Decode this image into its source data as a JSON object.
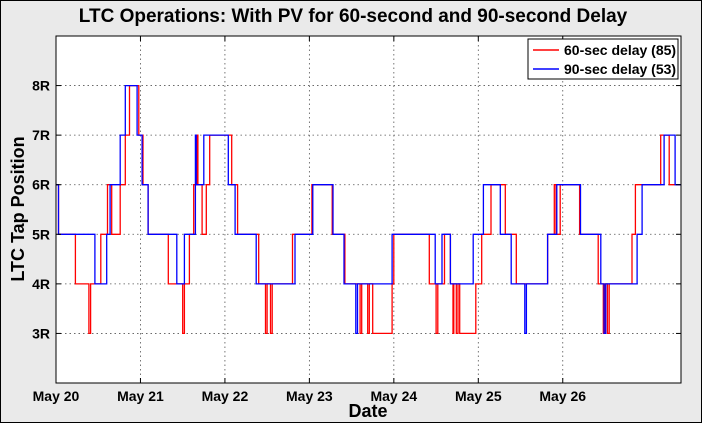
{
  "chart_data": {
    "type": "line",
    "title": "LTC Operations: With PV for 60-second and 90-second Delay",
    "xlabel": "Date",
    "ylabel": "LTC Tap Position",
    "xlim": [
      0,
      7.4
    ],
    "ylim": [
      2,
      9
    ],
    "x_ticks": [
      {
        "value": 0,
        "label": "May 20"
      },
      {
        "value": 1,
        "label": "May 21"
      },
      {
        "value": 2,
        "label": "May 22"
      },
      {
        "value": 3,
        "label": "May 23"
      },
      {
        "value": 4,
        "label": "May 24"
      },
      {
        "value": 5,
        "label": "May 25"
      },
      {
        "value": 6,
        "label": "May 26"
      }
    ],
    "y_ticks": [
      {
        "value": 3,
        "label": "3R"
      },
      {
        "value": 4,
        "label": "4R"
      },
      {
        "value": 5,
        "label": "5R"
      },
      {
        "value": 6,
        "label": "6R"
      },
      {
        "value": 7,
        "label": "7R"
      },
      {
        "value": 8,
        "label": "8R"
      }
    ],
    "grid": true,
    "legend_position": "top-right",
    "series": [
      {
        "name": "60-sec delay (85)",
        "color": "#ff0000",
        "step": true,
        "points": [
          [
            0,
            6
          ],
          [
            0.03,
            5
          ],
          [
            0.23,
            4
          ],
          [
            0.39,
            3
          ],
          [
            0.41,
            4
          ],
          [
            0.53,
            5
          ],
          [
            0.61,
            6
          ],
          [
            0.66,
            5
          ],
          [
            0.76,
            6
          ],
          [
            0.82,
            7
          ],
          [
            0.87,
            8
          ],
          [
            0.98,
            7
          ],
          [
            1.03,
            6
          ],
          [
            1.09,
            5
          ],
          [
            1.33,
            4
          ],
          [
            1.5,
            3
          ],
          [
            1.52,
            4
          ],
          [
            1.58,
            5
          ],
          [
            1.63,
            6
          ],
          [
            1.67,
            7
          ],
          [
            1.68,
            6
          ],
          [
            1.73,
            5
          ],
          [
            1.78,
            6
          ],
          [
            1.82,
            7
          ],
          [
            2.08,
            6
          ],
          [
            2.15,
            5
          ],
          [
            2.4,
            4
          ],
          [
            2.48,
            3
          ],
          [
            2.5,
            4
          ],
          [
            2.54,
            3
          ],
          [
            2.56,
            4
          ],
          [
            2.8,
            5
          ],
          [
            3.03,
            6
          ],
          [
            3.27,
            5
          ],
          [
            3.42,
            4
          ],
          [
            3.6,
            3
          ],
          [
            3.62,
            4
          ],
          [
            3.69,
            3
          ],
          [
            3.71,
            4
          ],
          [
            3.75,
            3
          ],
          [
            3.97,
            3
          ],
          [
            3.98,
            4
          ],
          [
            4,
            5
          ],
          [
            4.42,
            4
          ],
          [
            4.5,
            3
          ],
          [
            4.52,
            4
          ],
          [
            4.6,
            5
          ],
          [
            4.67,
            4
          ],
          [
            4.7,
            3
          ],
          [
            4.71,
            4
          ],
          [
            4.74,
            3
          ],
          [
            4.76,
            4
          ],
          [
            4.78,
            3
          ],
          [
            4.95,
            3
          ],
          [
            4.97,
            4
          ],
          [
            5.04,
            5
          ],
          [
            5.15,
            6
          ],
          [
            5.32,
            5
          ],
          [
            5.45,
            4
          ],
          [
            5.5,
            4
          ],
          [
            5.82,
            5
          ],
          [
            5.9,
            6
          ],
          [
            5.92,
            5
          ],
          [
            5.97,
            6
          ],
          [
            6.2,
            5
          ],
          [
            6.42,
            4
          ],
          [
            6.48,
            3
          ],
          [
            6.5,
            4
          ],
          [
            6.53,
            3
          ],
          [
            6.55,
            4
          ],
          [
            6.82,
            5
          ],
          [
            6.86,
            6
          ],
          [
            7.16,
            7
          ],
          [
            7.26,
            6
          ],
          [
            7.4,
            6
          ]
        ]
      },
      {
        "name": "90-sec delay (53)",
        "color": "#0000ff",
        "step": true,
        "points": [
          [
            0,
            6
          ],
          [
            0.03,
            5
          ],
          [
            0.46,
            4
          ],
          [
            0.6,
            5
          ],
          [
            0.64,
            6
          ],
          [
            0.76,
            7
          ],
          [
            0.82,
            8
          ],
          [
            0.96,
            7
          ],
          [
            1.02,
            6
          ],
          [
            1.09,
            5
          ],
          [
            1.43,
            4
          ],
          [
            1.52,
            5
          ],
          [
            1.65,
            7
          ],
          [
            1.66,
            6
          ],
          [
            1.75,
            7
          ],
          [
            2.04,
            6
          ],
          [
            2.12,
            5
          ],
          [
            2.37,
            4
          ],
          [
            2.83,
            5
          ],
          [
            3.04,
            6
          ],
          [
            3.28,
            5
          ],
          [
            3.41,
            4
          ],
          [
            3.55,
            3
          ],
          [
            3.57,
            4
          ],
          [
            3.7,
            4
          ],
          [
            3.98,
            5
          ],
          [
            4.49,
            4
          ],
          [
            4.57,
            5
          ],
          [
            4.67,
            4
          ],
          [
            4.94,
            5
          ],
          [
            5.06,
            6
          ],
          [
            5.26,
            5
          ],
          [
            5.39,
            4
          ],
          [
            5.55,
            3
          ],
          [
            5.57,
            4
          ],
          [
            5.64,
            4
          ],
          [
            5.82,
            5
          ],
          [
            5.93,
            6
          ],
          [
            6.21,
            5
          ],
          [
            6.45,
            4
          ],
          [
            6.49,
            3
          ],
          [
            6.51,
            4
          ],
          [
            6.88,
            5
          ],
          [
            6.94,
            6
          ],
          [
            7.2,
            7
          ],
          [
            7.33,
            6
          ],
          [
            7.4,
            6
          ]
        ]
      }
    ]
  }
}
